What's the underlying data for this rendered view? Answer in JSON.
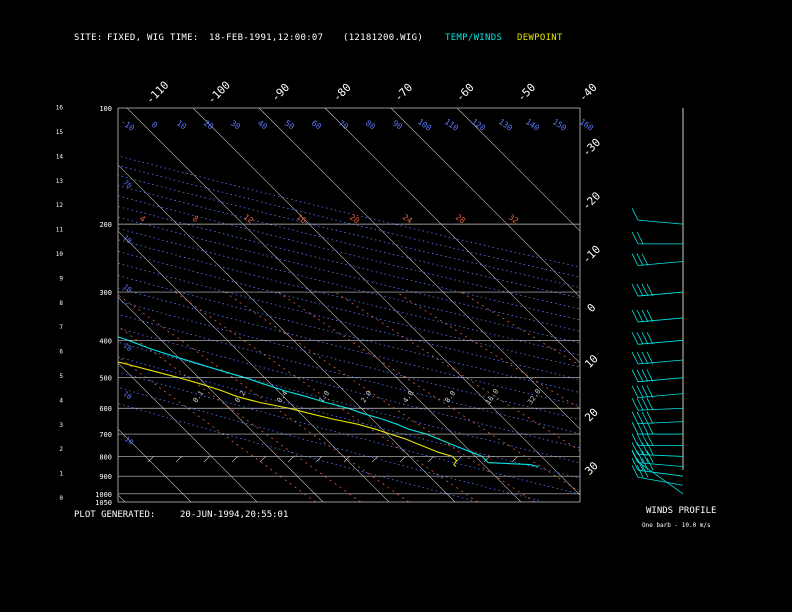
{
  "header": {
    "site_label": "SITE:",
    "site_value": "FIXED, WIG",
    "time_label": "TIME:",
    "time_value": "18-FEB-1991,12:00:07",
    "file_name": "(12181200.WIG)",
    "legend_temp": "TEMP/WINDS",
    "legend_dew": "DEWPOINT"
  },
  "footer": {
    "generated_label": "PLOT GENERATED:",
    "generated_value": "20-JUN-1994,20:55:01",
    "winds_title": "WINDS PROFILE",
    "barb_note": "One barb - 10.0 m/s"
  },
  "colors": {
    "background": "#000000",
    "temp": "#00e5e5",
    "dewpoint": "#e5e500",
    "isobar": "#c8c8c8",
    "isotherm": "#c8c8c8",
    "dry_adiabat": "#5a78ff",
    "mixing_ratio": "#e0603a"
  },
  "chart_data": {
    "type": "line",
    "subtype": "skew-t log-p",
    "pressure_levels": [
      "100",
      "200",
      "300",
      "400",
      "500",
      "600",
      "700",
      "800",
      "900",
      "1000",
      "1050"
    ],
    "height_ticks": [
      "0",
      "1",
      "2",
      "3",
      "4",
      "5",
      "6",
      "7",
      "8",
      "9",
      "10",
      "11",
      "12",
      "13",
      "14",
      "15",
      "16"
    ],
    "isotherm_labels": [
      "-110",
      "-100",
      "-90",
      "-80",
      "-70",
      "-60",
      "-50",
      "-40",
      "-30",
      "-20",
      "-10",
      "0",
      "10",
      "20",
      "30"
    ],
    "dry_adiabat_labels": [
      "-10",
      "0",
      "10",
      "20",
      "30",
      "40",
      "50",
      "60",
      "70",
      "80",
      "90",
      "100",
      "110",
      "120",
      "130",
      "140",
      "150",
      "160"
    ],
    "mixing_ratio_labels": [
      "0.1",
      "0.2",
      "0.4",
      "1.0",
      "2.0",
      "4.0",
      "8.0",
      "16.0",
      "32.0"
    ],
    "lapse_labels": [
      "4",
      "8",
      "12",
      "16",
      "20",
      "24",
      "28",
      "32"
    ],
    "ylim_hpa": [
      1050,
      100
    ],
    "temp_range_c": [
      -40,
      30
    ],
    "series": [
      {
        "name": "TEMP/WINDS",
        "values": [
          {
            "p": 850,
            "t": -2.0
          },
          {
            "p": 840,
            "t": -3.0
          },
          {
            "p": 830,
            "t": -9.0
          },
          {
            "p": 820,
            "t": -9.0
          },
          {
            "p": 800,
            "t": -9.0
          },
          {
            "p": 780,
            "t": -10.0
          },
          {
            "p": 760,
            "t": -11.0
          },
          {
            "p": 740,
            "t": -12.0
          },
          {
            "p": 720,
            "t": -13.0
          },
          {
            "p": 700,
            "t": -14.0
          },
          {
            "p": 680,
            "t": -16.0
          },
          {
            "p": 660,
            "t": -17.0
          },
          {
            "p": 640,
            "t": -18.5
          },
          {
            "p": 620,
            "t": -20.5
          },
          {
            "p": 600,
            "t": -22.0
          },
          {
            "p": 580,
            "t": -24.5
          },
          {
            "p": 560,
            "t": -26.5
          },
          {
            "p": 540,
            "t": -29.0
          },
          {
            "p": 520,
            "t": -31.0
          },
          {
            "p": 500,
            "t": -33.0
          },
          {
            "p": 480,
            "t": -35.5
          },
          {
            "p": 460,
            "t": -38.0
          },
          {
            "p": 440,
            "t": -40.5
          },
          {
            "p": 420,
            "t": -43.0
          },
          {
            "p": 400,
            "t": -45.0
          },
          {
            "p": 380,
            "t": -47.5
          },
          {
            "p": 360,
            "t": -49.5
          },
          {
            "p": 350,
            "t": -51.0
          },
          {
            "p": 340,
            "t": -49.0
          },
          {
            "p": 330,
            "t": -49.5
          },
          {
            "p": 320,
            "t": -51.0
          },
          {
            "p": 310,
            "t": -52.5
          },
          {
            "p": 300,
            "t": -53.0
          },
          {
            "p": 290,
            "t": -52.0
          },
          {
            "p": 280,
            "t": -53.0
          },
          {
            "p": 270,
            "t": -54.5
          },
          {
            "p": 260,
            "t": -56.0
          },
          {
            "p": 250,
            "t": -57.0
          },
          {
            "p": 240,
            "t": -58.5
          },
          {
            "p": 230,
            "t": -59.0
          },
          {
            "p": 220,
            "t": -59.5
          },
          {
            "p": 210,
            "t": -60.5
          },
          {
            "p": 205,
            "t": -59.0
          },
          {
            "p": 200,
            "t": -58.5
          }
        ]
      },
      {
        "name": "DEWPOINT",
        "values": [
          {
            "p": 850,
            "t": -14.5
          },
          {
            "p": 840,
            "t": -14.5
          },
          {
            "p": 820,
            "t": -13.5
          },
          {
            "p": 800,
            "t": -13.5
          },
          {
            "p": 780,
            "t": -15.0
          },
          {
            "p": 760,
            "t": -16.0
          },
          {
            "p": 740,
            "t": -17.0
          },
          {
            "p": 720,
            "t": -18.0
          },
          {
            "p": 700,
            "t": -19.5
          },
          {
            "p": 680,
            "t": -21.0
          },
          {
            "p": 660,
            "t": -23.0
          },
          {
            "p": 640,
            "t": -26.0
          },
          {
            "p": 620,
            "t": -28.5
          },
          {
            "p": 600,
            "t": -31.0
          },
          {
            "p": 580,
            "t": -34.5
          },
          {
            "p": 560,
            "t": -37.0
          },
          {
            "p": 540,
            "t": -38.5
          },
          {
            "p": 520,
            "t": -40.5
          },
          {
            "p": 500,
            "t": -43.0
          },
          {
            "p": 480,
            "t": -46.0
          },
          {
            "p": 460,
            "t": -49.0
          },
          {
            "p": 440,
            "t": -53.0
          },
          {
            "p": 420,
            "t": -58.0
          },
          {
            "p": 400,
            "t": -64.0
          },
          {
            "p": 390,
            "t": -71.0
          },
          {
            "p": 385,
            "t": -60.0
          },
          {
            "p": 375,
            "t": -57.0
          },
          {
            "p": 365,
            "t": -60.0
          },
          {
            "p": 355,
            "t": -64.0
          },
          {
            "p": 340,
            "t": -68.0
          },
          {
            "p": 320,
            "t": -72.0
          },
          {
            "p": 300,
            "t": -74.5
          }
        ]
      }
    ],
    "wind_barbs": [
      {
        "p": 1000,
        "dir": 180,
        "speed": 10
      },
      {
        "p": 950,
        "dir": 240,
        "speed": 30
      },
      {
        "p": 900,
        "dir": 245,
        "speed": 40
      },
      {
        "p": 850,
        "dir": 250,
        "speed": 40
      },
      {
        "p": 800,
        "dir": 255,
        "speed": 40
      },
      {
        "p": 750,
        "dir": 260,
        "speed": 40
      },
      {
        "p": 700,
        "dir": 260,
        "speed": 40
      },
      {
        "p": 650,
        "dir": 265,
        "speed": 40
      },
      {
        "p": 600,
        "dir": 265,
        "speed": 40
      },
      {
        "p": 550,
        "dir": 270,
        "speed": 40
      },
      {
        "p": 500,
        "dir": 270,
        "speed": 40
      },
      {
        "p": 450,
        "dir": 270,
        "speed": 40
      },
      {
        "p": 400,
        "dir": 270,
        "speed": 40
      },
      {
        "p": 350,
        "dir": 270,
        "speed": 40
      },
      {
        "p": 300,
        "dir": 270,
        "speed": 40
      },
      {
        "p": 250,
        "dir": 270,
        "speed": 30
      },
      {
        "p": 225,
        "dir": 260,
        "speed": 20
      },
      {
        "p": 200,
        "dir": 250,
        "speed": 10
      }
    ]
  }
}
